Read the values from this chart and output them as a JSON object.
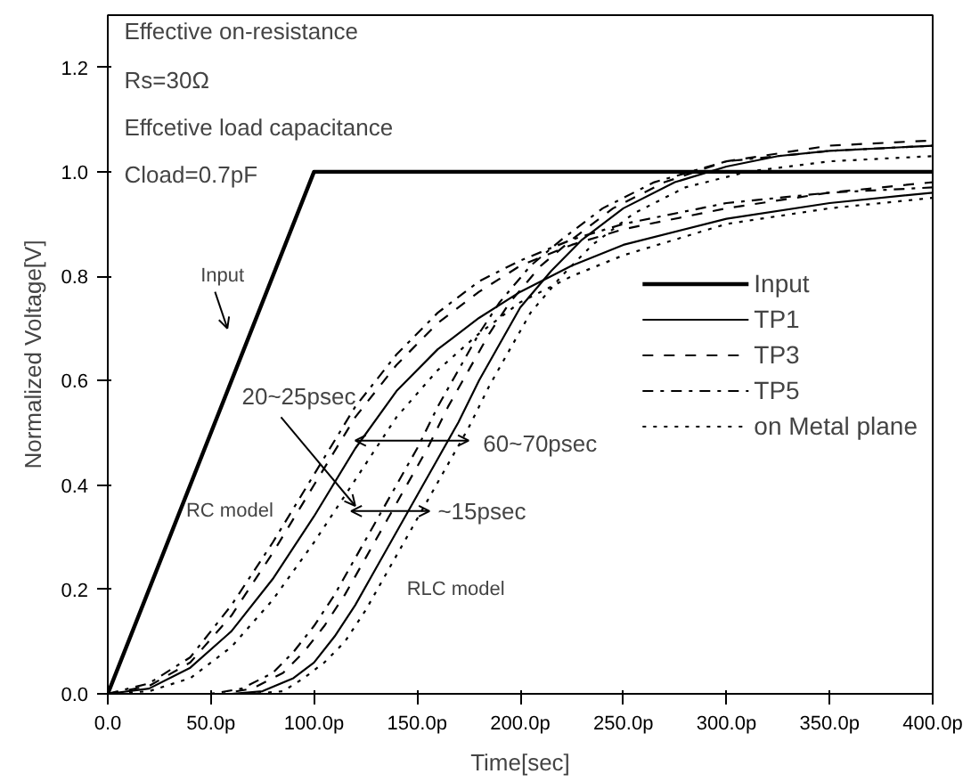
{
  "chart_data": {
    "type": "line",
    "xlabel": "Time[sec]",
    "ylabel": "Normalized Voltage[V]",
    "xlim": [
      0,
      400
    ],
    "ylim": [
      0,
      1.3
    ],
    "xticks": [
      {
        "value": 0,
        "label": "0.0"
      },
      {
        "value": 50,
        "label": "50.0p"
      },
      {
        "value": 100,
        "label": "100.0p"
      },
      {
        "value": 150,
        "label": "150.0p"
      },
      {
        "value": 200,
        "label": "200.0p"
      },
      {
        "value": 250,
        "label": "250.0p"
      },
      {
        "value": 300,
        "label": "300.0p"
      },
      {
        "value": 350,
        "label": "350.0p"
      },
      {
        "value": 400,
        "label": "400.0p"
      }
    ],
    "yticks": [
      {
        "value": 0,
        "label": "0.0"
      },
      {
        "value": 0.2,
        "label": "0.2"
      },
      {
        "value": 0.4,
        "label": "0.4"
      },
      {
        "value": 0.6,
        "label": "0.6"
      },
      {
        "value": 0.8,
        "label": "0.8"
      },
      {
        "value": 1.0,
        "label": "1.0"
      },
      {
        "value": 1.2,
        "label": "1.2"
      }
    ],
    "grid": false,
    "legend": "right",
    "marker": "none",
    "series": [
      {
        "name": "Input",
        "color": "#000000",
        "line_style": "solid",
        "x": [
          0,
          100,
          400
        ],
        "values": [
          0,
          1,
          1
        ]
      },
      {
        "name": "TP1",
        "color": "#000000",
        "line_style": "solid",
        "x": [
          0,
          20,
          40,
          60,
          80,
          100,
          120,
          140,
          160,
          180,
          200,
          225,
          250,
          300,
          350,
          400
        ],
        "values": [
          0,
          0.01,
          0.05,
          0.12,
          0.22,
          0.34,
          0.47,
          0.58,
          0.66,
          0.72,
          0.77,
          0.82,
          0.86,
          0.91,
          0.94,
          0.96
        ]
      },
      {
        "name": "TP3",
        "color": "#000000",
        "line_style": "dashed",
        "x": [
          0,
          20,
          40,
          60,
          80,
          100,
          120,
          140,
          160,
          180,
          200,
          225,
          250,
          300,
          350,
          400
        ],
        "values": [
          0,
          0.015,
          0.06,
          0.15,
          0.27,
          0.4,
          0.53,
          0.63,
          0.71,
          0.77,
          0.82,
          0.86,
          0.89,
          0.93,
          0.96,
          0.98
        ]
      },
      {
        "name": "TP5",
        "color": "#000000",
        "line_style": "dashdot",
        "x": [
          0,
          20,
          40,
          60,
          80,
          100,
          120,
          140,
          160,
          180,
          200,
          225,
          250,
          300,
          350,
          400
        ],
        "values": [
          0,
          0.02,
          0.07,
          0.17,
          0.29,
          0.42,
          0.55,
          0.65,
          0.73,
          0.79,
          0.83,
          0.87,
          0.9,
          0.94,
          0.96,
          0.97
        ]
      },
      {
        "name": "on Metal plane",
        "color": "#000000",
        "line_style": "dotted",
        "x": [
          0,
          20,
          40,
          60,
          80,
          100,
          120,
          140,
          160,
          180,
          200,
          225,
          250,
          300,
          350,
          400
        ],
        "values": [
          0,
          0.005,
          0.03,
          0.09,
          0.18,
          0.29,
          0.41,
          0.53,
          0.62,
          0.69,
          0.75,
          0.8,
          0.84,
          0.9,
          0.93,
          0.95
        ]
      },
      {
        "color": "#000000",
        "line_style": "solid",
        "x": [
          0,
          60,
          75,
          90,
          100,
          110,
          120,
          130,
          140,
          150,
          160,
          170,
          180,
          190,
          200,
          215,
          230,
          250,
          275,
          300,
          325,
          350,
          400
        ],
        "values": [
          0,
          0,
          0.005,
          0.03,
          0.06,
          0.11,
          0.17,
          0.24,
          0.31,
          0.38,
          0.45,
          0.52,
          0.6,
          0.67,
          0.74,
          0.81,
          0.87,
          0.93,
          0.98,
          1.01,
          1.03,
          1.04,
          1.05
        ]
      },
      {
        "color": "#000000",
        "line_style": "dashed",
        "x": [
          0,
          55,
          70,
          85,
          95,
          105,
          115,
          125,
          135,
          145,
          155,
          165,
          175,
          185,
          195,
          210,
          225,
          245,
          270,
          300,
          350,
          400
        ],
        "values": [
          0,
          0,
          0.01,
          0.04,
          0.08,
          0.13,
          0.19,
          0.26,
          0.33,
          0.4,
          0.47,
          0.55,
          0.62,
          0.69,
          0.75,
          0.82,
          0.87,
          0.93,
          0.98,
          1.02,
          1.05,
          1.06
        ]
      },
      {
        "color": "#000000",
        "line_style": "dashdot",
        "x": [
          0,
          50,
          65,
          80,
          90,
          100,
          110,
          120,
          130,
          140,
          150,
          160,
          170,
          180,
          190,
          205,
          220,
          240,
          265,
          300,
          350,
          400
        ],
        "values": [
          0,
          0,
          0.01,
          0.04,
          0.08,
          0.13,
          0.19,
          0.26,
          0.33,
          0.4,
          0.47,
          0.55,
          0.62,
          0.69,
          0.75,
          0.82,
          0.87,
          0.93,
          0.98,
          1.02,
          1.04,
          1.05
        ]
      },
      {
        "color": "#000000",
        "line_style": "dotted",
        "x": [
          0,
          70,
          85,
          95,
          105,
          115,
          125,
          135,
          145,
          155,
          165,
          175,
          185,
          195,
          205,
          220,
          235,
          255,
          280,
          310,
          350,
          400
        ],
        "values": [
          0,
          0,
          0.005,
          0.03,
          0.06,
          0.1,
          0.16,
          0.23,
          0.3,
          0.37,
          0.44,
          0.51,
          0.59,
          0.66,
          0.73,
          0.8,
          0.86,
          0.92,
          0.97,
          1.0,
          1.02,
          1.03
        ]
      }
    ],
    "annotations": [
      "Effective on-resistance",
      "Rs=30Ω",
      "Effcetive load capacitance",
      "Cload=0.7pF",
      "Input",
      "20~25psec",
      "60~70psec",
      "~15psec",
      "RC model",
      "RLC model"
    ]
  }
}
